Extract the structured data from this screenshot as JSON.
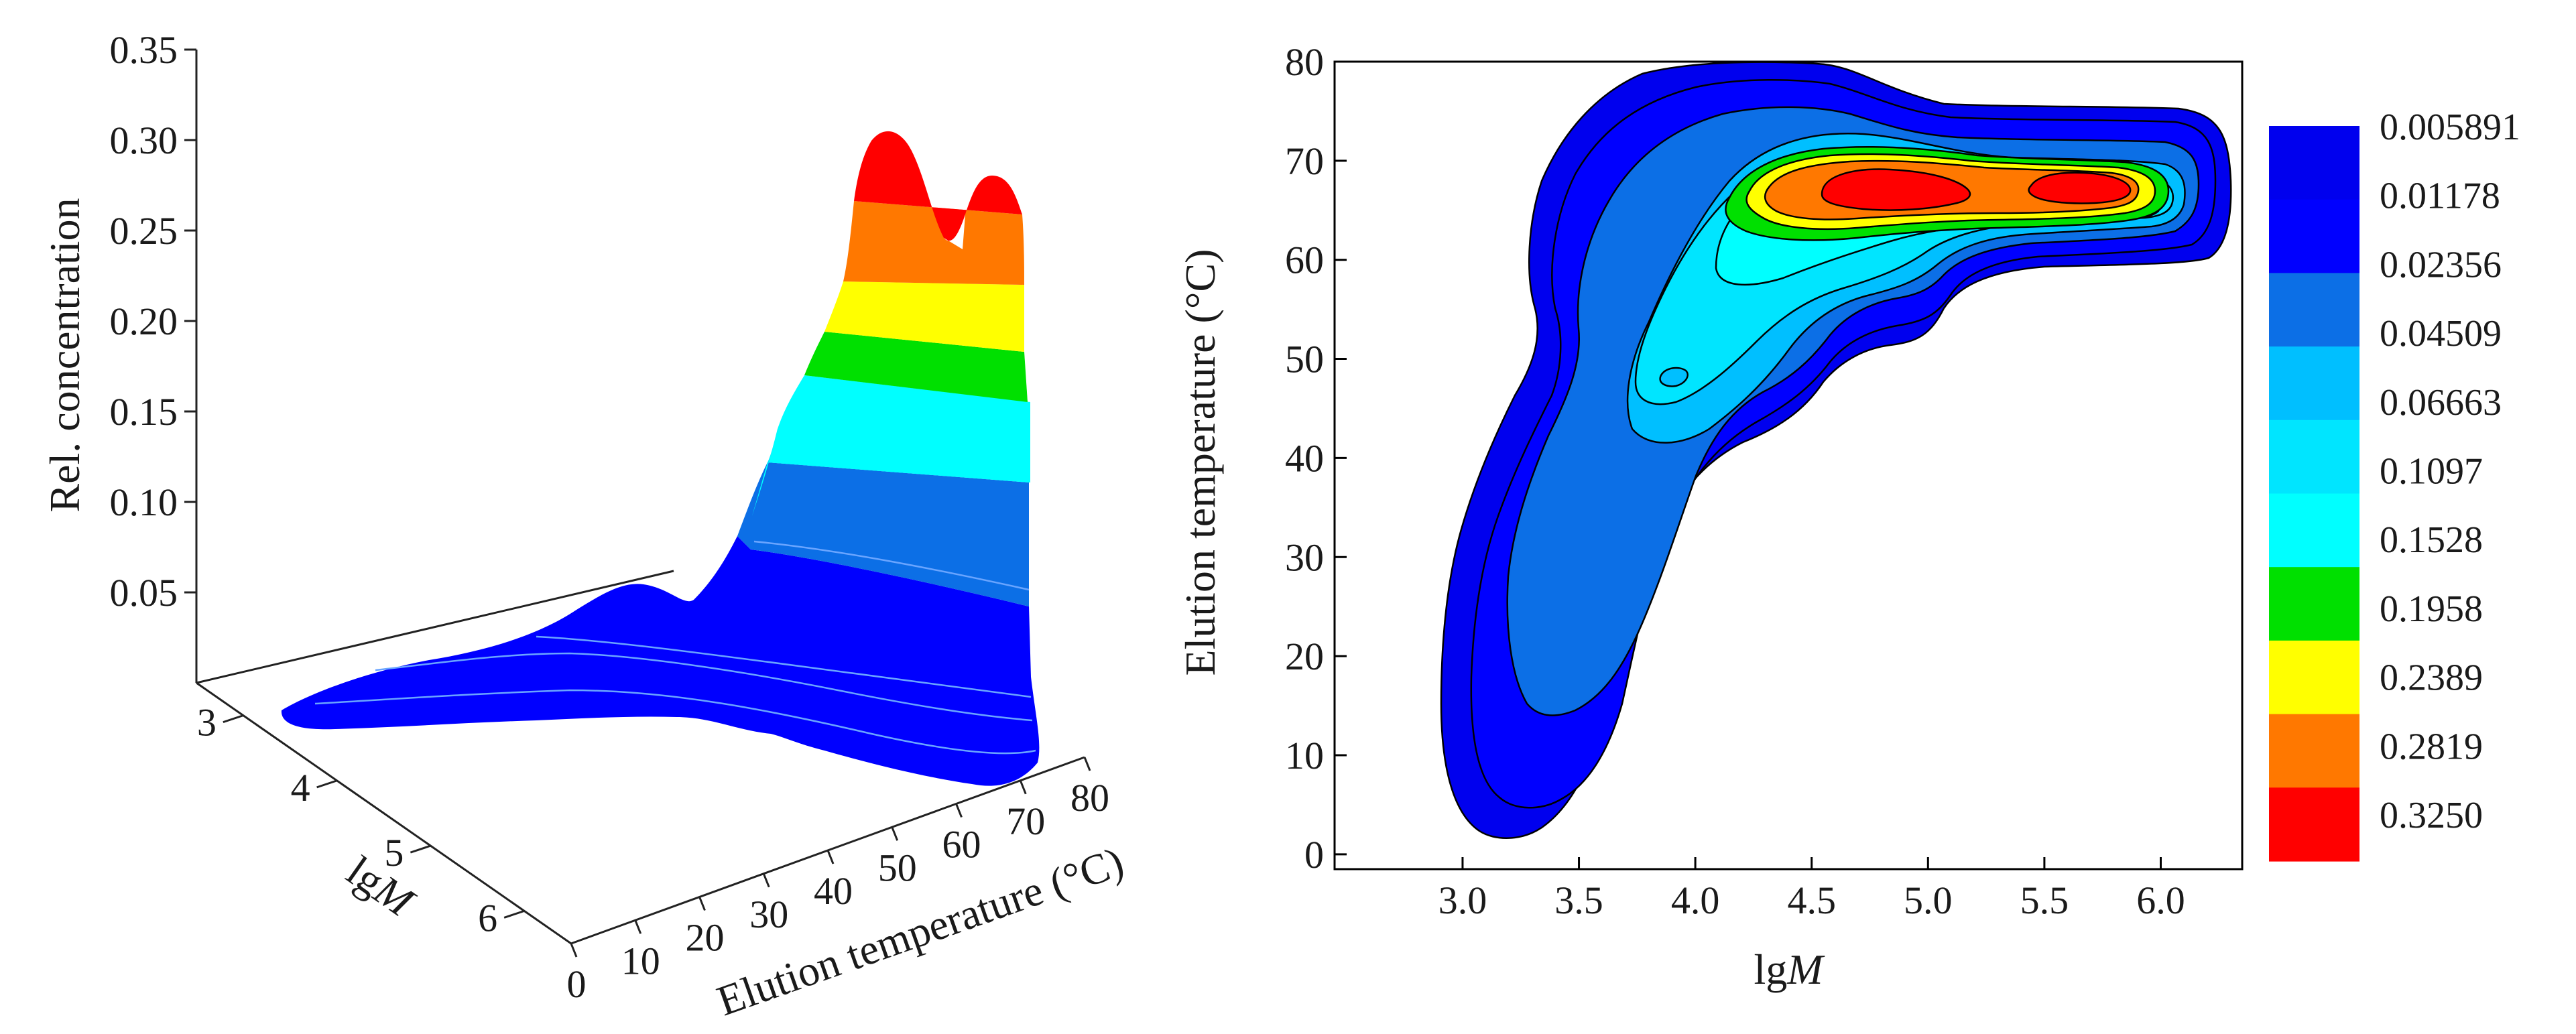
{
  "chart_data": [
    {
      "type": "surface3d",
      "ylabel": "Rel. concentration",
      "xlabel": "Elution temperature (°C)",
      "x_ticks": [
        "0",
        "10",
        "20",
        "30",
        "40",
        "50",
        "60",
        "70",
        "80"
      ],
      "zlabel_prefix": "lg",
      "zlabel_italic": "M",
      "lgM_ticks": [
        "3",
        "4",
        "5",
        "6"
      ],
      "y_ticks": [
        "0.05",
        "0.10",
        "0.15",
        "0.20",
        "0.25",
        "0.30",
        "0.35"
      ],
      "ylim": [
        0,
        0.35
      ],
      "xlim": [
        0,
        80
      ],
      "lgMlim": [
        2.5,
        6.5
      ],
      "peaks": [
        {
          "lgM": 4.85,
          "temperature": 67,
          "value": 0.325
        },
        {
          "lgM": 5.7,
          "temperature": 68,
          "value": 0.3
        },
        {
          "lgM": 3.6,
          "temperature": 50,
          "value": 0.05
        }
      ],
      "colors": [
        "#0000ff",
        "#0c6fe6",
        "#00e5ff",
        "#00e000",
        "#ffff00",
        "#ff7800",
        "#ff0000"
      ]
    },
    {
      "type": "contour",
      "ylabel": "Elution temperature (°C)",
      "xlabel_prefix": "lg",
      "xlabel_italic": "M",
      "x_ticks": [
        "3.0",
        "3.5",
        "4.0",
        "4.5",
        "5.0",
        "5.5",
        "6.0"
      ],
      "y_ticks": [
        "0",
        "10",
        "20",
        "30",
        "40",
        "50",
        "60",
        "70",
        "80"
      ],
      "xlim": [
        2.45,
        6.35
      ],
      "ylim": [
        -1.5,
        80
      ],
      "levels": [
        "0.005891",
        "0.01178",
        "0.02356",
        "0.04509",
        "0.06663",
        "0.1097",
        "0.1528",
        "0.1958",
        "0.2389",
        "0.2819",
        "0.3250"
      ],
      "level_colors": [
        "#0000ee",
        "#0000ff",
        "#0c6fe6",
        "#00bfff",
        "#00e5ff",
        "#00ffff",
        "#00e000",
        "#ffff00",
        "#ff7800",
        "#ff0000"
      ],
      "contour_peaks": [
        {
          "lgM": 4.85,
          "temperature": 67.5,
          "value": 0.325
        },
        {
          "lgM": 5.7,
          "temperature": 68,
          "value": 0.3
        },
        {
          "lgM": 3.95,
          "temperature": 48.5,
          "value": 0.07
        }
      ]
    }
  ]
}
